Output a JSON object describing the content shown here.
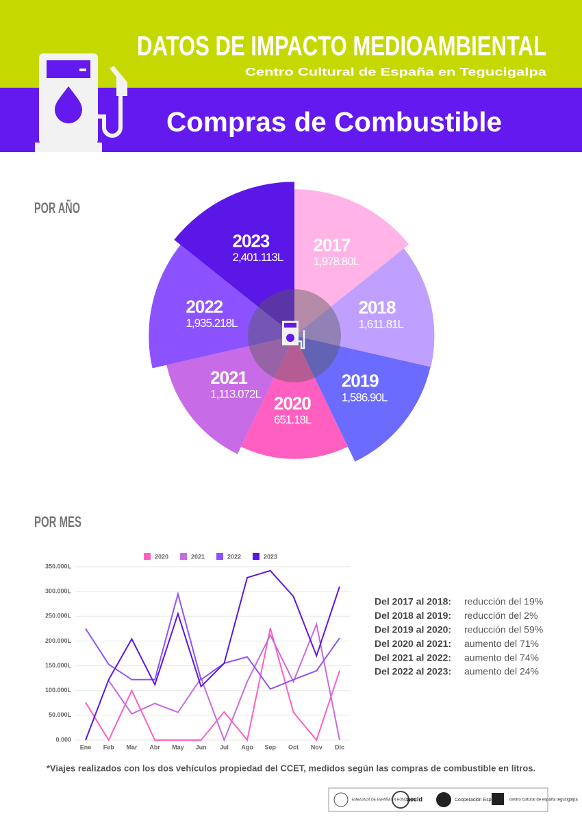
{
  "header": {
    "title": "DATOS DE IMPACTO MEDIOAMBIENTAL",
    "subtitle": "Centro Cultural de España en Tegucigalpa",
    "heading": "Compras de Combustible"
  },
  "chart_data": [
    {
      "type": "rose",
      "title": "POR AÑO",
      "categories": [
        "2017",
        "2018",
        "2019",
        "2020",
        "2021",
        "2022",
        "2023"
      ],
      "values": [
        1978.8,
        1611.81,
        1586.9,
        651.18,
        1113.072,
        1935.218,
        2401.113
      ],
      "value_labels": [
        "1,978.80L",
        "1,611.81L",
        "1,586.90L",
        "651.18L",
        "1,113.072L",
        "1,935.218L",
        "2,401.113L"
      ],
      "colors": [
        "#ffb3e6",
        "#c0a0ff",
        "#6b6bff",
        "#ff5fc0",
        "#c86be6",
        "#8c52ff",
        "#5b17e6"
      ]
    },
    {
      "type": "line",
      "title": "POR MES",
      "categories": [
        "Ene",
        "Feb",
        "Mar",
        "Abr",
        "May",
        "Jun",
        "Jul",
        "Ago",
        "Sep",
        "Oct",
        "Nov",
        "Dic"
      ],
      "series": [
        {
          "name": "2020",
          "color": "#ff5fbf",
          "values": [
            76000,
            0,
            100000,
            0,
            0,
            0,
            57000,
            0,
            226000,
            56000,
            0,
            140000
          ]
        },
        {
          "name": "2021",
          "color": "#c86be0",
          "values": [
            null,
            120000,
            53000,
            74000,
            56000,
            125000,
            0,
            118000,
            212000,
            118000,
            234000,
            0
          ]
        },
        {
          "name": "2022",
          "color": "#8c52ff",
          "values": [
            225000,
            153000,
            122000,
            122000,
            295000,
            122000,
            155000,
            168000,
            103000,
            122000,
            140000,
            206000
          ]
        },
        {
          "name": "2023",
          "color": "#5b17e6",
          "values": [
            0,
            122000,
            204000,
            112000,
            255000,
            108000,
            155000,
            328000,
            342000,
            290000,
            170000,
            310000
          ]
        }
      ],
      "ylim": [
        0,
        350000
      ],
      "yticks": [
        {
          "value": 0,
          "label": "0.000"
        },
        {
          "value": 50000,
          "label": "50.000L"
        },
        {
          "value": 100000,
          "label": "100.000L"
        },
        {
          "value": 150000,
          "label": "150.000L"
        },
        {
          "value": 200000,
          "label": "200.000L"
        },
        {
          "value": 250000,
          "label": "250.000L"
        },
        {
          "value": 300000,
          "label": "300.000L"
        },
        {
          "value": 350000,
          "label": "350.000L"
        }
      ],
      "grid": true,
      "legend": "top"
    }
  ],
  "comparisons": [
    {
      "label": "Del 2017 al 2018:",
      "value": "reducción del 19%"
    },
    {
      "label": "Del 2018 al 2019:",
      "value": "reducción del 2%"
    },
    {
      "label": "Del 2019 al 2020:",
      "value": "reducción del 59%"
    },
    {
      "label": "Del 2020 al 2021:",
      "value": "aumento del 71%"
    },
    {
      "label": "Del 2021 al 2022:",
      "value": "aumento del 74%"
    },
    {
      "label": "Del 2022 al 2023:",
      "value": "aumento del 24%"
    }
  ],
  "footnote": "*Viajes realizados con los dos vehículos propiedad del CCET, medidos según las compras de combustible en litros.",
  "logos": [
    "EMBAJADA DE ESPAÑA EN HONDURAS",
    "aecid",
    "Cooperación Española",
    "centro cultural de españa tegucigalpa"
  ]
}
